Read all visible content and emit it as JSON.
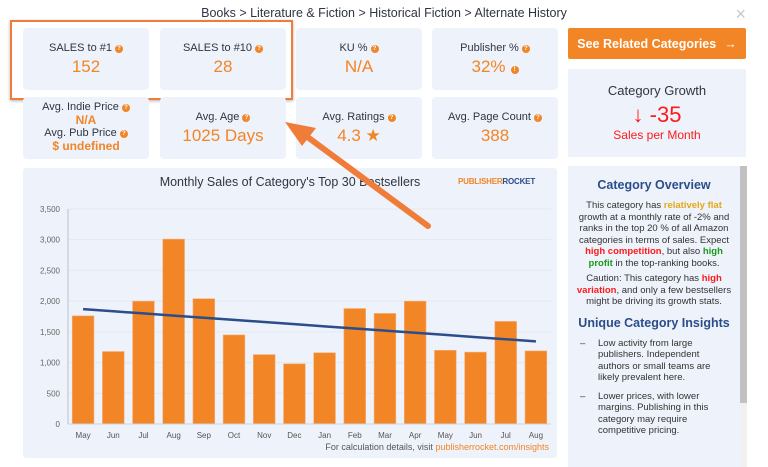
{
  "breadcrumb": "Books > Literature & Fiction > Historical Fiction > Alternate History",
  "close_icon": "×",
  "stats": {
    "sales1": {
      "label": "SALES to #1",
      "value": "152"
    },
    "sales10": {
      "label": "SALES to #10",
      "value": "28"
    },
    "ku": {
      "label": "KU %",
      "value": "N/A"
    },
    "publisher": {
      "label": "Publisher %",
      "value": "32%"
    },
    "indie_price": {
      "label": "Avg. Indie Price",
      "value": "N/A"
    },
    "pub_price": {
      "label": "Avg. Pub Price",
      "value": "$ undefined"
    },
    "age": {
      "label": "Avg. Age",
      "value": "1025 Days"
    },
    "ratings": {
      "label": "Avg. Ratings",
      "value": "4.3 ★"
    },
    "pages": {
      "label": "Avg. Page Count",
      "value": "388"
    }
  },
  "related_button": {
    "label": "See Related Categories",
    "icon": "→"
  },
  "growth": {
    "title": "Category Growth",
    "value": "↓ -35",
    "unit": "Sales per Month"
  },
  "chart": {
    "title": "Monthly Sales of Category's Top 30 Bestsellers",
    "brand_a": "PUBLISHER",
    "brand_b": "ROCKET",
    "foot_text": "For calculation details, visit ",
    "foot_link": "publisherrocket.com/insights"
  },
  "chart_data": {
    "type": "bar",
    "title": "Monthly Sales of Category's Top 30 Bestsellers",
    "categories": [
      "May",
      "Jun",
      "Jul",
      "Aug",
      "Sep",
      "Oct",
      "Nov",
      "Dec",
      "Jan",
      "Feb",
      "Mar",
      "Apr",
      "May",
      "Jun",
      "Jul",
      "Aug"
    ],
    "series": [
      {
        "name": "Monthly Sales",
        "type": "bar",
        "color": "#f28526",
        "values": [
          1760,
          1180,
          2000,
          3010,
          2040,
          1450,
          1130,
          980,
          1160,
          1880,
          1800,
          2000,
          1200,
          1170,
          1670,
          1190
        ]
      },
      {
        "name": "Trend",
        "type": "line",
        "color": "#2b4d8a",
        "values": [
          1870,
          1835,
          1800,
          1765,
          1730,
          1695,
          1660,
          1625,
          1590,
          1555,
          1520,
          1485,
          1450,
          1415,
          1380,
          1345
        ]
      }
    ],
    "yticks": [
      0,
      500,
      1000,
      1500,
      2000,
      2500,
      3000,
      3500
    ],
    "ylim": [
      0,
      3500
    ],
    "xlabel": "",
    "ylabel": "",
    "grid": true
  },
  "overview": {
    "title": "Category Overview",
    "p1_a": "This category has ",
    "p1_flat": "relatively flat",
    "p1_b": " growth at a monthly rate of -2% and ranks in the top 20 % of all Amazon categories in terms of sales. Expect ",
    "p1_comp": "high competition",
    "p1_c": ", but also ",
    "p1_profit": "high profit",
    "p1_d": " in the top-ranking books.",
    "p2_a": "Caution: This category has ",
    "p2_var": "high variation",
    "p2_b": ", and only a few bestsellers might be driving its growth stats.",
    "insights_title": "Unique Category Insights",
    "insights": [
      "Low activity from large publishers. Independent authors or small teams are likely prevalent here.",
      "Lower prices, with lower margins. Publishing in this category may require competitive pricing."
    ]
  }
}
